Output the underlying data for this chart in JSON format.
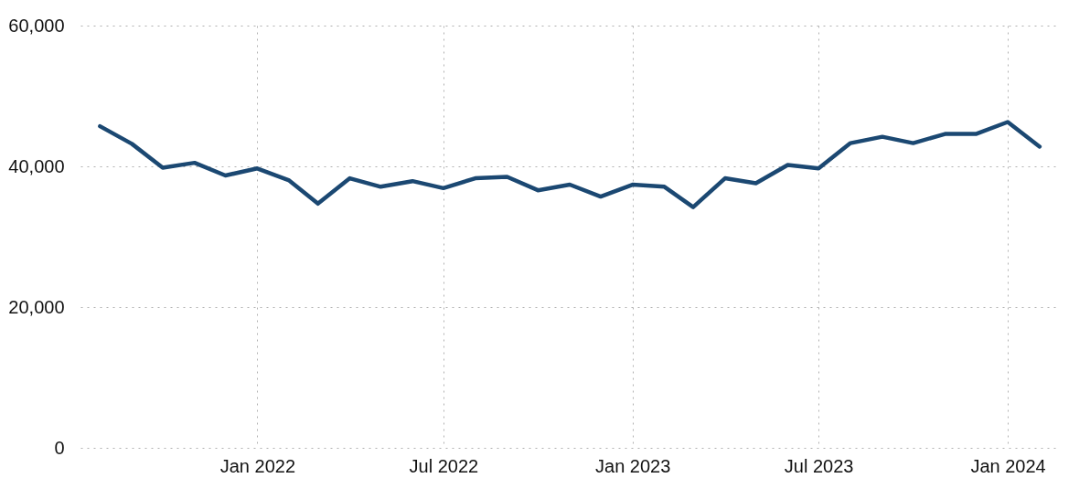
{
  "chart_data": {
    "type": "line",
    "x": [
      "2021-08",
      "2021-09",
      "2021-10",
      "2021-11",
      "2021-12",
      "2022-01",
      "2022-02",
      "2022-03",
      "2022-04",
      "2022-05",
      "2022-06",
      "2022-07",
      "2022-08",
      "2022-09",
      "2022-10",
      "2022-11",
      "2022-12",
      "2023-01",
      "2023-02",
      "2023-03",
      "2023-04",
      "2023-05",
      "2023-06",
      "2023-07",
      "2023-08",
      "2023-09",
      "2023-10",
      "2023-11",
      "2023-12",
      "2024-01",
      "2024-02"
    ],
    "series": [
      {
        "color": "#1b4872",
        "values": [
          45700,
          43200,
          39800,
          40500,
          38700,
          39700,
          38000,
          34700,
          38300,
          37100,
          37900,
          36900,
          38300,
          38500,
          36600,
          37400,
          35700,
          37400,
          37100,
          34200,
          38300,
          37600,
          40200,
          39700,
          43300,
          44200,
          43300,
          44600,
          44600,
          46300,
          42800
        ]
      }
    ],
    "xlim": [
      "2021-07-13",
      "2024-02-18"
    ],
    "xticks": [
      {
        "value": "2022-01",
        "label": "Jan 2022"
      },
      {
        "value": "2022-07",
        "label": "Jul 2022"
      },
      {
        "value": "2023-01",
        "label": "Jan 2023"
      },
      {
        "value": "2023-07",
        "label": "Jul 2023"
      },
      {
        "value": "2024-01",
        "label": "Jan 2024"
      }
    ],
    "ylim": [
      0,
      60000
    ],
    "yticks": [
      0,
      {
        "value": 20000,
        "label": "20,000"
      },
      {
        "value": 40000,
        "label": "40,000"
      },
      {
        "value": 60000,
        "label": "60,000"
      }
    ],
    "grid": true,
    "line_style": "solid"
  }
}
